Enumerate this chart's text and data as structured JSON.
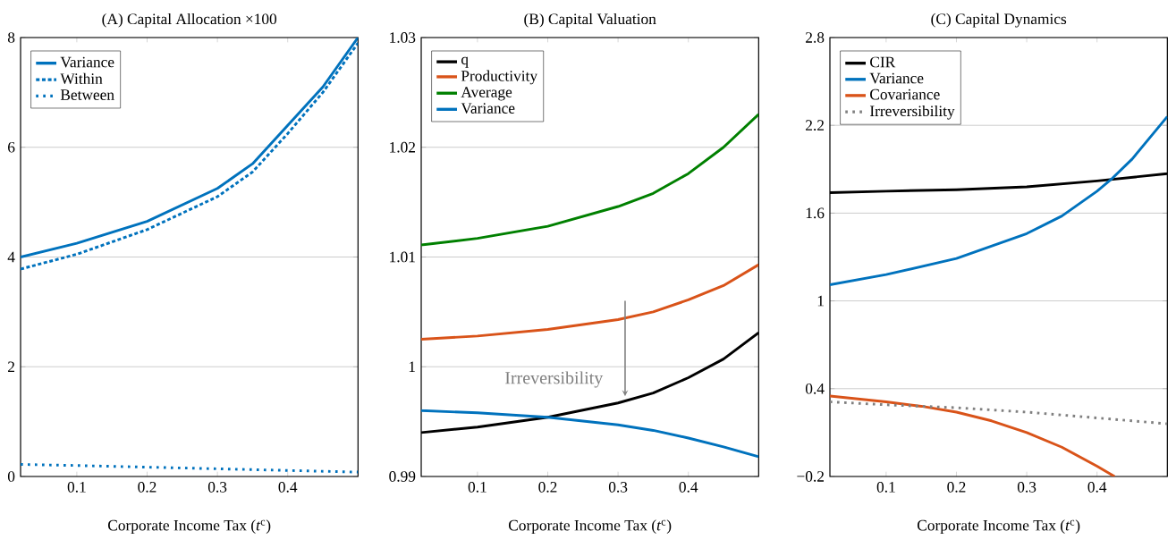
{
  "chart_data": [
    {
      "type": "line",
      "title": "(A) Capital Allocation ×100",
      "xlabel": "Corporate Income Tax (*t*$^{c}$)",
      "xlim": [
        0.02,
        0.5
      ],
      "xticks": [
        0.1,
        0.2,
        0.3,
        0.4
      ],
      "ylim": [
        0,
        8
      ],
      "yticks": [
        0,
        2,
        4,
        6,
        8
      ],
      "grid": "y",
      "legend": "top left",
      "series": [
        {
          "name": "Variance",
          "color": "#0072bd",
          "line_style": "solid",
          "x": [
            0.02,
            0.1,
            0.2,
            0.3,
            0.35,
            0.4,
            0.45,
            0.5
          ],
          "values": [
            4.0,
            4.25,
            4.65,
            5.25,
            5.7,
            6.4,
            7.1,
            8.0
          ]
        },
        {
          "name": "Within",
          "color": "#0072bd",
          "line_style": "dashed",
          "x": [
            0.02,
            0.1,
            0.2,
            0.3,
            0.35,
            0.4,
            0.45,
            0.5
          ],
          "values": [
            3.78,
            4.05,
            4.5,
            5.1,
            5.55,
            6.25,
            7.0,
            7.9
          ]
        },
        {
          "name": "Between",
          "color": "#0072bd",
          "line_style": "dotted",
          "x": [
            0.02,
            0.1,
            0.2,
            0.3,
            0.4,
            0.5
          ],
          "values": [
            0.22,
            0.2,
            0.17,
            0.14,
            0.11,
            0.08
          ]
        }
      ]
    },
    {
      "type": "line",
      "title": "(B) Capital Valuation",
      "xlabel": "Corporate Income Tax (*t*$^{c}$)",
      "xlim": [
        0.02,
        0.5
      ],
      "xticks": [
        0.1,
        0.2,
        0.3,
        0.4
      ],
      "ylim": [
        0.99,
        1.03
      ],
      "yticks": [
        0.99,
        1,
        1.01,
        1.02,
        1.03
      ],
      "grid": "y",
      "legend": "top left",
      "annotations": [
        {
          "text": "Irreversibility",
          "x": 0.31,
          "y": 0.9971
        }
      ],
      "series": [
        {
          "name": "q",
          "color": "#000000",
          "line_style": "solid",
          "x": [
            0.02,
            0.1,
            0.2,
            0.3,
            0.35,
            0.4,
            0.45,
            0.5
          ],
          "values": [
            0.994,
            0.9945,
            0.9954,
            0.9967,
            0.9976,
            0.999,
            1.0007,
            1.0031
          ]
        },
        {
          "name": "Productivity",
          "color": "#d95319",
          "line_style": "solid",
          "x": [
            0.02,
            0.1,
            0.2,
            0.3,
            0.35,
            0.4,
            0.45,
            0.5
          ],
          "values": [
            1.0025,
            1.0028,
            1.0034,
            1.0043,
            1.005,
            1.0061,
            1.0074,
            1.0093
          ]
        },
        {
          "name": "Average",
          "color": "#008000",
          "line_style": "solid",
          "x": [
            0.02,
            0.1,
            0.2,
            0.3,
            0.35,
            0.4,
            0.45,
            0.5
          ],
          "values": [
            1.0111,
            1.0117,
            1.0128,
            1.0146,
            1.0158,
            1.0176,
            1.02,
            1.023
          ]
        },
        {
          "name": "Variance",
          "color": "#0072bd",
          "line_style": "solid",
          "x": [
            0.02,
            0.1,
            0.2,
            0.3,
            0.35,
            0.4,
            0.45,
            0.5
          ],
          "values": [
            0.996,
            0.9958,
            0.9954,
            0.9947,
            0.9942,
            0.9935,
            0.9927,
            0.9918
          ]
        }
      ]
    },
    {
      "type": "line",
      "title": "(C) Capital Dynamics",
      "xlabel": "Corporate Income Tax (*t*$^{c}$)",
      "xlim": [
        0.02,
        0.5
      ],
      "xticks": [
        0.1,
        0.2,
        0.3,
        0.4
      ],
      "ylim": [
        -0.2,
        2.8
      ],
      "yticks": [
        {
          "value": -0.2,
          "label": "−0.2"
        },
        0.4,
        1,
        1.6,
        2.2,
        2.8
      ],
      "grid": "y",
      "legend": "top left",
      "series": [
        {
          "name": "CIR",
          "color": "#000000",
          "line_style": "solid",
          "x": [
            0.02,
            0.1,
            0.2,
            0.3,
            0.4,
            0.5
          ],
          "values": [
            1.74,
            1.75,
            1.76,
            1.78,
            1.82,
            1.87
          ]
        },
        {
          "name": "Variance",
          "color": "#0072bd",
          "line_style": "solid",
          "x": [
            0.02,
            0.1,
            0.2,
            0.3,
            0.35,
            0.4,
            0.42,
            0.45,
            0.5
          ],
          "values": [
            1.11,
            1.18,
            1.29,
            1.46,
            1.58,
            1.75,
            1.83,
            1.97,
            2.26
          ]
        },
        {
          "name": "Covariance",
          "color": "#d95319",
          "line_style": "solid",
          "x": [
            0.02,
            0.1,
            0.15,
            0.2,
            0.25,
            0.3,
            0.35,
            0.4,
            0.425
          ],
          "values": [
            0.35,
            0.31,
            0.28,
            0.24,
            0.18,
            0.1,
            0.0,
            -0.13,
            -0.2
          ]
        },
        {
          "name": "Irreversibility",
          "color": "#808080",
          "line_style": "dotted",
          "x": [
            0.02,
            0.1,
            0.2,
            0.3,
            0.4,
            0.5
          ],
          "values": [
            0.31,
            0.29,
            0.27,
            0.24,
            0.2,
            0.16
          ]
        }
      ]
    }
  ]
}
